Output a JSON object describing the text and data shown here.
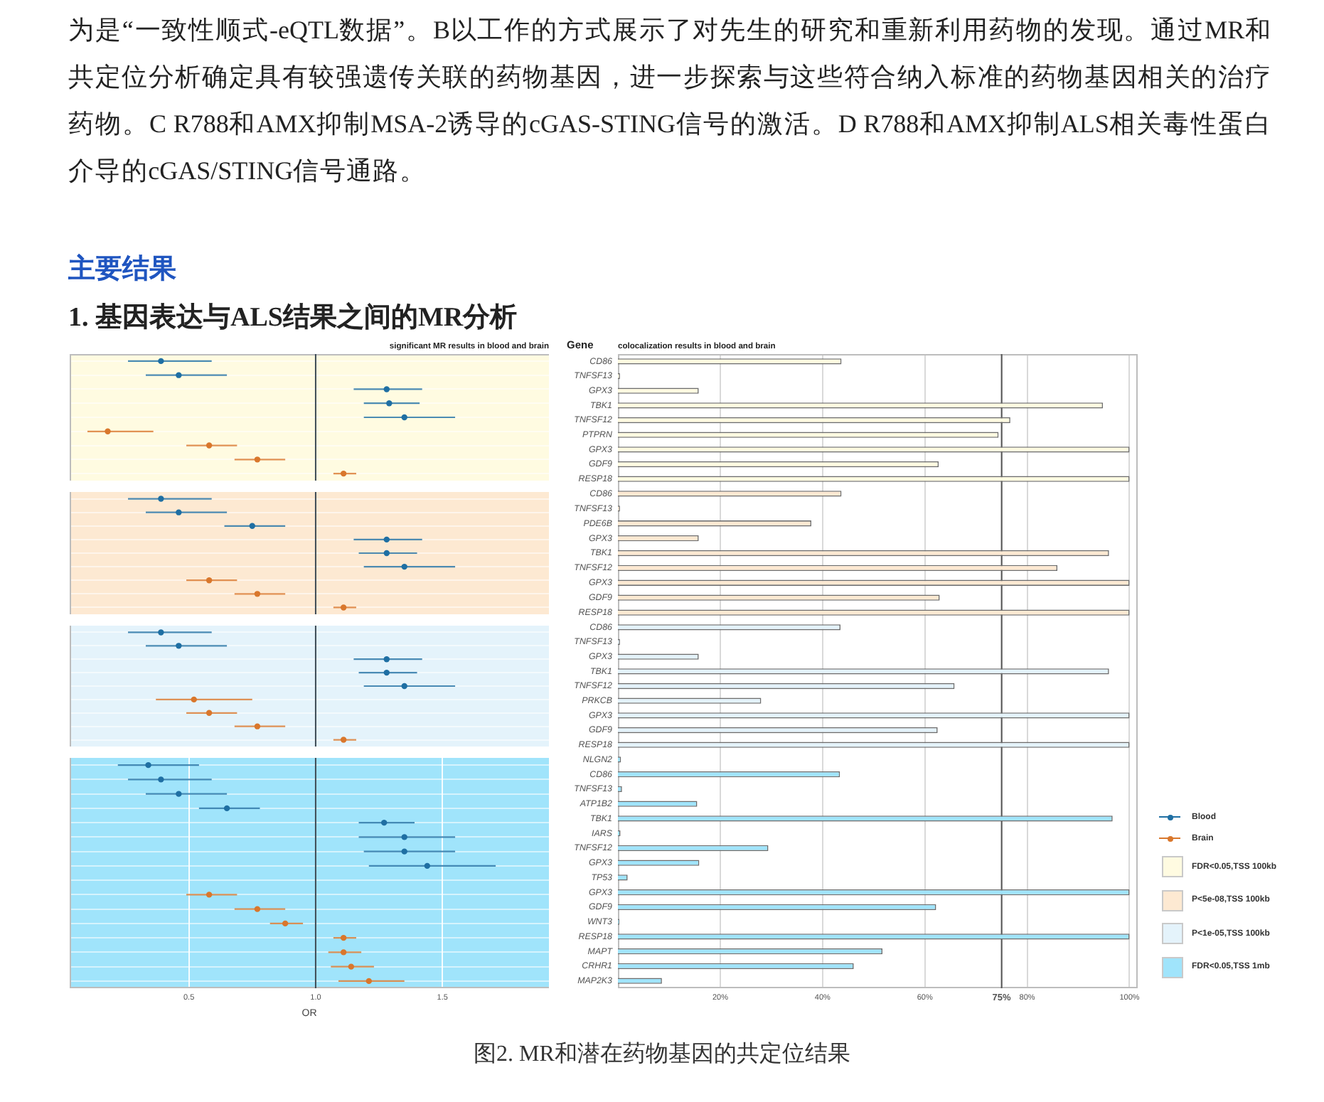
{
  "chart_data": [
    {
      "type": "scatter",
      "title": "significant MR results in blood and brain",
      "orientation": "horizontal",
      "annotations": [
        "为是“一致性顺式-eQTL数据”。B以工作的方式展示了对先生的研究和重新利用药物的发现。通过MR和共定位分析确定具有较强遗传关联的药物基因，进一步探索与这些符合纳入标准的药物基因相关的治疗药物。C R788和AMX抑制MSA-2诱导的cGAS-STING信号的激活。D R788和AMX抑制ALS相关毒性蛋白介导的cGAS/STING信号通路。",
        "主要结果",
        "1. 基因表达与ALS结果之间的MR分析",
        "图2. MR和潜在药物基因的共定位结果"
      ],
      "categories": [
        "CD86",
        "TNFSF13",
        "GPX3",
        "TBK1",
        "TNFSF12",
        "PTPRN",
        "GPX3",
        "GDF9",
        "RESP18"
      ],
      "series": [
        {
          "name": "Blood",
          "color": "#1f6fa3",
          "values": [
            0.39,
            0.46,
            1.28,
            1.29,
            1.35,
            null,
            null,
            null,
            null
          ],
          "errors": [
            [
              0.26,
              0.59
            ],
            [
              0.33,
              0.65
            ],
            [
              1.15,
              1.42
            ],
            [
              1.19,
              1.41
            ],
            [
              1.19,
              1.55
            ],
            null,
            null,
            null,
            null
          ]
        },
        {
          "name": "Brain",
          "color": "#d9772c",
          "values": [
            null,
            null,
            null,
            null,
            null,
            0.18,
            0.58,
            0.77,
            1.11
          ],
          "errors": [
            null,
            null,
            null,
            null,
            null,
            [
              0.1,
              0.36
            ],
            [
              0.49,
              0.69
            ],
            [
              0.68,
              0.88
            ],
            [
              1.07,
              1.16
            ]
          ]
        }
      ],
      "xlim": [
        0.03,
        1.92
      ],
      "ref_lines": [
        {
          "axis": "x",
          "value": 1,
          "color": "#3c4a54"
        }
      ],
      "bands": [
        {
          "axis": "y",
          "from": "CD86",
          "to": "RESP18",
          "color": "#fffbe1"
        }
      ],
      "grid": "y",
      "legend": "right",
      "tick_labels": false,
      "marker": "circle"
    },
    {
      "type": "scatter",
      "orientation": "horizontal",
      "categories": [
        "CD86",
        "TNFSF13",
        "PDE6B",
        "GPX3",
        "TBK1",
        "TNFSF12",
        "GPX3",
        "GDF9",
        "RESP18"
      ],
      "series": [
        {
          "color": "#1f6fa3",
          "values": [
            0.39,
            0.46,
            0.75,
            1.28,
            1.28,
            1.35,
            null,
            null,
            null
          ],
          "errors": [
            [
              0.26,
              0.59
            ],
            [
              0.33,
              0.65
            ],
            [
              0.64,
              0.88
            ],
            [
              1.15,
              1.42
            ],
            [
              1.17,
              1.4
            ],
            [
              1.19,
              1.55
            ],
            null,
            null,
            null
          ]
        },
        {
          "color": "#d9772c",
          "values": [
            null,
            null,
            null,
            null,
            null,
            null,
            0.58,
            0.77,
            1.11
          ],
          "errors": [
            null,
            null,
            null,
            null,
            null,
            null,
            [
              0.49,
              0.69
            ],
            [
              0.68,
              0.88
            ],
            [
              1.07,
              1.16
            ]
          ]
        }
      ],
      "xlim": [
        0.03,
        1.92
      ],
      "ref_lines": [
        {
          "axis": "x",
          "value": 1,
          "color": "#3c4a54"
        }
      ],
      "bands": [
        {
          "axis": "y",
          "from": "CD86",
          "to": "RESP18",
          "color": "#fde9d2"
        }
      ],
      "grid": "y",
      "tick_labels": false,
      "marker": "circle"
    },
    {
      "type": "scatter",
      "orientation": "horizontal",
      "categories": [
        "CD86",
        "TNFSF13",
        "GPX3",
        "TBK1",
        "TNFSF12",
        "PRKCB",
        "GPX3",
        "GDF9",
        "RESP18"
      ],
      "series": [
        {
          "color": "#1f6fa3",
          "values": [
            0.39,
            0.46,
            1.28,
            1.28,
            1.35,
            null,
            null,
            null,
            null
          ],
          "errors": [
            [
              0.26,
              0.59
            ],
            [
              0.33,
              0.65
            ],
            [
              1.15,
              1.42
            ],
            [
              1.17,
              1.4
            ],
            [
              1.19,
              1.55
            ],
            null,
            null,
            null,
            null
          ]
        },
        {
          "color": "#d9772c",
          "values": [
            null,
            null,
            null,
            null,
            null,
            0.52,
            0.58,
            0.77,
            1.11
          ],
          "errors": [
            null,
            null,
            null,
            null,
            null,
            [
              0.37,
              0.75
            ],
            [
              0.49,
              0.69
            ],
            [
              0.68,
              0.88
            ],
            [
              1.07,
              1.16
            ]
          ]
        }
      ],
      "xlim": [
        0.03,
        1.92
      ],
      "ref_lines": [
        {
          "axis": "x",
          "value": 1,
          "color": "#3c4a54"
        }
      ],
      "bands": [
        {
          "axis": "y",
          "from": "CD86",
          "to": "RESP18",
          "color": "#e4f3fb"
        }
      ],
      "grid": "y",
      "tick_labels": false,
      "marker": "circle"
    },
    {
      "type": "scatter",
      "xlabel": "OR",
      "orientation": "horizontal",
      "categories": [
        "NLGN2",
        "CD86",
        "TNFSF13",
        "ATP1B2",
        "TBK1",
        "IARS",
        "TNFSF12",
        "GPX3",
        "TP53",
        "GPX3",
        "GDF9",
        "WNT3",
        "RESP18",
        "MAPT",
        "CRHR1",
        "MAP2K3"
      ],
      "series": [
        {
          "color": "#1f6fa3",
          "values": [
            0.34,
            0.39,
            0.46,
            0.65,
            1.27,
            1.35,
            1.35,
            1.44,
            null,
            null,
            null,
            null,
            null,
            null,
            null,
            null
          ],
          "errors": [
            [
              0.22,
              0.54
            ],
            [
              0.26,
              0.59
            ],
            [
              0.33,
              0.65
            ],
            [
              0.54,
              0.78
            ],
            [
              1.17,
              1.39
            ],
            [
              1.17,
              1.55
            ],
            [
              1.19,
              1.55
            ],
            [
              1.21,
              1.71
            ],
            null,
            null,
            null,
            null,
            null,
            null,
            null,
            null
          ]
        },
        {
          "color": "#d9772c",
          "values": [
            null,
            null,
            null,
            null,
            null,
            null,
            null,
            null,
            null,
            0.58,
            0.77,
            0.88,
            1.11,
            1.11,
            1.14,
            1.21
          ],
          "errors": [
            null,
            null,
            null,
            null,
            null,
            null,
            null,
            null,
            null,
            [
              0.49,
              0.69
            ],
            [
              0.68,
              0.88
            ],
            [
              0.82,
              0.95
            ],
            [
              1.07,
              1.16
            ],
            [
              1.05,
              1.18
            ],
            [
              1.06,
              1.23
            ],
            [
              1.09,
              1.35
            ]
          ]
        }
      ],
      "xlim": [
        0.03,
        1.92
      ],
      "xticks": [
        0.5,
        {
          "value": 1,
          "label": "1.0"
        },
        1.5
      ],
      "ref_lines": [
        {
          "axis": "x",
          "value": 1,
          "color": "#3c4a54"
        }
      ],
      "bands": [
        {
          "axis": "y",
          "from": "NLGN2",
          "to": "MAP2K3",
          "color": "#a0e4fb"
        }
      ],
      "grid": true,
      "tick_labels": "x",
      "marker": "circle"
    },
    {
      "type": "bar",
      "title": "colocalization results in blood and brain",
      "ylabel": "Gene",
      "orientation": "horizontal",
      "categories": [
        "CD86",
        "TNFSF13",
        "GPX3",
        "TBK1",
        "TNFSF12",
        "PTPRN",
        "GPX3",
        "GDF9",
        "RESP18"
      ],
      "series": [
        {
          "name": "FDR<0.05,TSS 100kb",
          "color": "#fffbe1",
          "values": [
            43.7,
            0.4,
            15.8,
            94.8,
            76.7,
            74.4,
            100,
            62.7,
            100
          ]
        }
      ],
      "xlim": [
        0,
        101.6
      ],
      "xticks": [
        20,
        40,
        60,
        75,
        80,
        100
      ],
      "ref_lines": [
        {
          "axis": "x",
          "value": 75,
          "color": "#555555"
        }
      ],
      "grid": "x",
      "legend": "right",
      "tick_labels": "y"
    },
    {
      "type": "bar",
      "orientation": "horizontal",
      "categories": [
        "CD86",
        "TNFSF13",
        "PDE6B",
        "GPX3",
        "TBK1",
        "TNFSF12",
        "GPX3",
        "GDF9",
        "RESP18"
      ],
      "series": [
        {
          "name": "P<5e-08,TSS 100kb",
          "color": "#fde9d2",
          "values": [
            43.7,
            0.4,
            37.8,
            15.8,
            96.0,
            85.9,
            100,
            62.9,
            100
          ]
        }
      ],
      "xlim": [
        0,
        101.6
      ],
      "xticks": [
        20,
        40,
        60,
        75,
        80,
        100
      ],
      "ref_lines": [
        {
          "axis": "x",
          "value": 75,
          "color": "#555555"
        }
      ],
      "grid": "x",
      "legend": "right",
      "tick_labels": "y"
    },
    {
      "type": "bar",
      "orientation": "horizontal",
      "categories": [
        "CD86",
        "TNFSF13",
        "GPX3",
        "TBK1",
        "TNFSF12",
        "PRKCB",
        "GPX3",
        "GDF9",
        "RESP18"
      ],
      "series": [
        {
          "name": "P<1e-05,TSS 100kb",
          "color": "#e4f3fb",
          "values": [
            43.5,
            0.4,
            15.8,
            96.0,
            65.8,
            28.0,
            100,
            62.5,
            100
          ]
        }
      ],
      "xlim": [
        0,
        101.6
      ],
      "xticks": [
        20,
        40,
        60,
        75,
        80,
        100
      ],
      "ref_lines": [
        {
          "axis": "x",
          "value": 75,
          "color": "#555555"
        }
      ],
      "grid": "x",
      "legend": "right",
      "tick_labels": "y"
    },
    {
      "type": "bar",
      "orientation": "horizontal",
      "categories": [
        "NLGN2",
        "CD86",
        "TNFSF13",
        "ATP1B2",
        "TBK1",
        "IARS",
        "TNFSF12",
        "GPX3",
        "TP53",
        "GPX3",
        "GDF9",
        "WNT3",
        "RESP18",
        "MAPT",
        "CRHR1",
        "MAP2K3"
      ],
      "series": [
        {
          "name": "FDR<0.05,TSS 1mb",
          "color": "#a0e4fb",
          "values": [
            0.6,
            43.4,
            0.8,
            15.5,
            96.7,
            0.5,
            29.4,
            15.9,
            1.9,
            100,
            62.2,
            0.3,
            100,
            51.7,
            46.1,
            8.6
          ]
        }
      ],
      "xlim": [
        0,
        101.6
      ],
      "xticks": [
        {
          "value": 20,
          "label": "20%"
        },
        {
          "value": 40,
          "label": "40%"
        },
        {
          "value": 60,
          "label": "60%"
        },
        {
          "value": 75,
          "label": "75%"
        },
        {
          "value": 80,
          "label": "80%"
        },
        {
          "value": 100,
          "label": "100%"
        }
      ],
      "ref_lines": [
        {
          "axis": "x",
          "value": 75,
          "color": "#555555"
        }
      ],
      "grid": "x",
      "legend": "right"
    }
  ]
}
